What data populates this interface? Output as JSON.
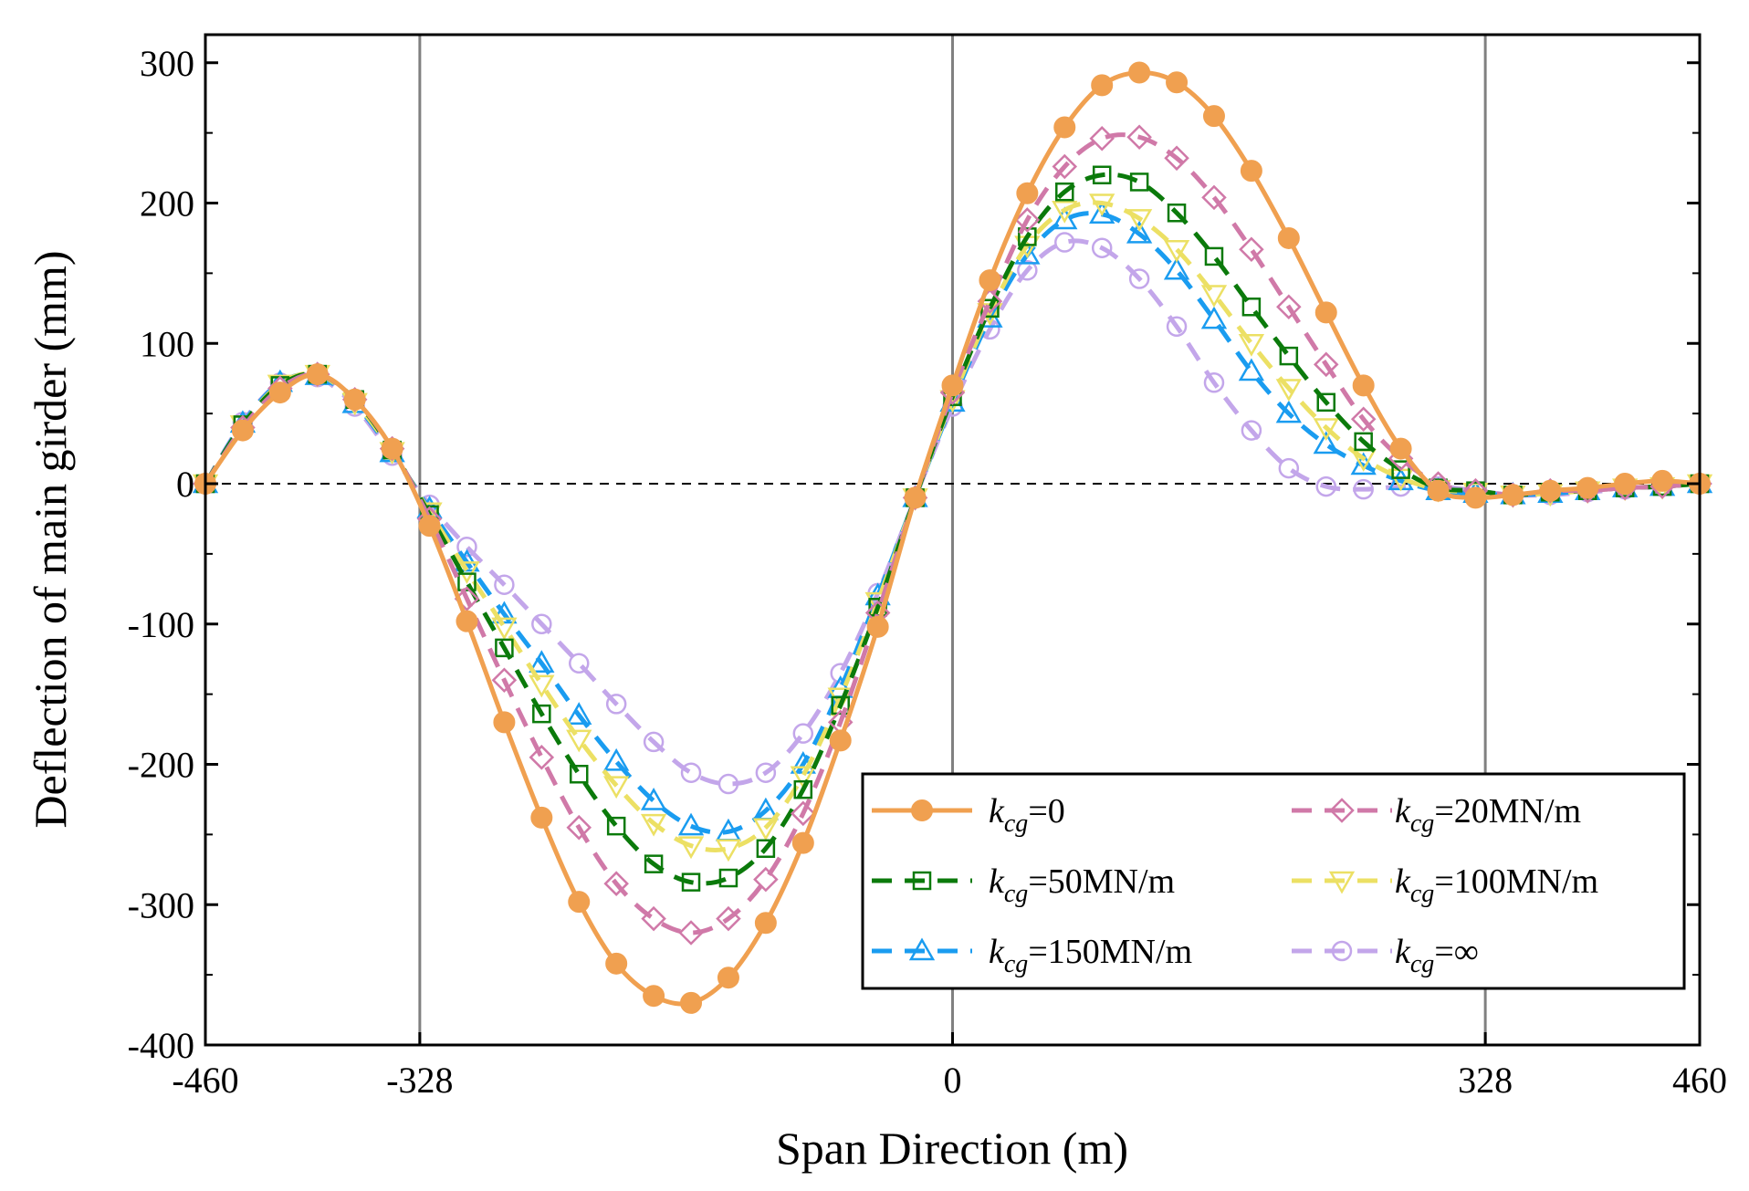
{
  "chart_data": {
    "type": "line",
    "title": "",
    "xlabel": "Span Direction (m)",
    "ylabel": "Deflection of main girder (mm)",
    "xlim": [
      -460,
      460
    ],
    "ylim": [
      -400,
      320
    ],
    "xticks": [
      -460,
      -328,
      0,
      328,
      460
    ],
    "xtick_labels": [
      "-460",
      "-328",
      "0",
      "328",
      "460"
    ],
    "yticks": [
      -400,
      -300,
      -200,
      -100,
      0,
      100,
      200,
      300
    ],
    "ytick_labels": [
      "-400",
      "-300",
      "-200",
      "-100",
      "0",
      "100",
      "200",
      "300"
    ],
    "vlines": [
      -328,
      0,
      328
    ],
    "hline_zero": true,
    "legend_position": "lower-right",
    "x": [
      -460,
      -437,
      -414,
      -391,
      -368,
      -345,
      -322,
      -299,
      -276,
      -253,
      -230,
      -207,
      -184,
      -161,
      -138,
      -115,
      -92,
      -69,
      -46,
      -23,
      0,
      23,
      46,
      69,
      92,
      115,
      138,
      161,
      184,
      207,
      230,
      253,
      276,
      299,
      322,
      345,
      368,
      391,
      414,
      437,
      460
    ],
    "series": [
      {
        "name": "k_cg=0",
        "label_base": "k",
        "label_sub": "cg",
        "label_tail": "=0",
        "color": "#f0a050",
        "marker": "circle-filled",
        "dash": "solid",
        "values": [
          0,
          38,
          65,
          78,
          60,
          25,
          -30,
          -98,
          -170,
          -238,
          -298,
          -342,
          -365,
          -370,
          -352,
          -313,
          -256,
          -183,
          -102,
          -10,
          70,
          145,
          207,
          254,
          284,
          293,
          286,
          262,
          223,
          175,
          122,
          70,
          25,
          -5,
          -10,
          -8,
          -5,
          -3,
          0,
          2,
          0
        ]
      },
      {
        "name": "k_cg=20MN/m",
        "label_base": "k",
        "label_sub": "cg",
        "label_tail": "=20MN/m",
        "color": "#d079a8",
        "marker": "diamond",
        "dash": "dashed",
        "values": [
          0,
          40,
          68,
          78,
          60,
          25,
          -25,
          -82,
          -140,
          -195,
          -245,
          -285,
          -310,
          -320,
          -310,
          -282,
          -235,
          -170,
          -92,
          -10,
          65,
          130,
          188,
          226,
          246,
          247,
          232,
          204,
          167,
          126,
          85,
          46,
          18,
          0,
          -5,
          -8,
          -5,
          -5,
          -3,
          -2,
          0
        ]
      },
      {
        "name": "k_cg=50MN/m",
        "label_base": "k",
        "label_sub": "cg",
        "label_tail": "=50MN/m",
        "color": "#0b7a0b",
        "marker": "square",
        "dash": "dashed",
        "values": [
          0,
          42,
          70,
          78,
          60,
          24,
          -22,
          -70,
          -117,
          -164,
          -207,
          -244,
          -271,
          -284,
          -281,
          -260,
          -218,
          -158,
          -88,
          -10,
          62,
          125,
          176,
          208,
          220,
          215,
          193,
          162,
          126,
          91,
          58,
          30,
          10,
          -3,
          -5,
          -8,
          -6,
          -5,
          -3,
          -2,
          0
        ]
      },
      {
        "name": "k_cg=100MN/m",
        "label_base": "k",
        "label_sub": "cg",
        "label_tail": "=100MN/m",
        "color": "#ece064",
        "marker": "triangle-down",
        "dash": "dashed",
        "values": [
          0,
          42,
          71,
          78,
          58,
          23,
          -20,
          -62,
          -102,
          -143,
          -182,
          -215,
          -242,
          -258,
          -260,
          -245,
          -208,
          -152,
          -84,
          -10,
          60,
          122,
          170,
          195,
          200,
          189,
          167,
          135,
          100,
          68,
          40,
          18,
          4,
          -4,
          -6,
          -8,
          -7,
          -5,
          -3,
          -2,
          0
        ]
      },
      {
        "name": "k_cg=150MN/m",
        "label_base": "k",
        "label_sub": "cg",
        "label_tail": "=150MN/m",
        "color": "#1a9cf0",
        "marker": "triangle-up",
        "dash": "dashed",
        "values": [
          0,
          43,
          72,
          77,
          57,
          22,
          -18,
          -56,
          -93,
          -128,
          -165,
          -198,
          -226,
          -244,
          -248,
          -233,
          -200,
          -146,
          -80,
          -10,
          58,
          118,
          163,
          188,
          192,
          178,
          152,
          117,
          80,
          50,
          28,
          13,
          2,
          -5,
          -7,
          -8,
          -7,
          -5,
          -3,
          -2,
          0
        ]
      },
      {
        "name": "k_cg=∞",
        "label_base": "k",
        "label_sub": "cg",
        "label_tail": "=∞",
        "color": "#c3a6ea",
        "marker": "circle-open",
        "dash": "dashed",
        "values": [
          0,
          44,
          72,
          76,
          55,
          20,
          -15,
          -45,
          -72,
          -100,
          -128,
          -157,
          -184,
          -206,
          -214,
          -206,
          -178,
          -135,
          -78,
          -10,
          55,
          110,
          152,
          172,
          168,
          146,
          112,
          72,
          38,
          11,
          -2,
          -4,
          -2,
          -2,
          -5,
          -8,
          -8,
          -6,
          -4,
          -2,
          0
        ]
      }
    ]
  }
}
